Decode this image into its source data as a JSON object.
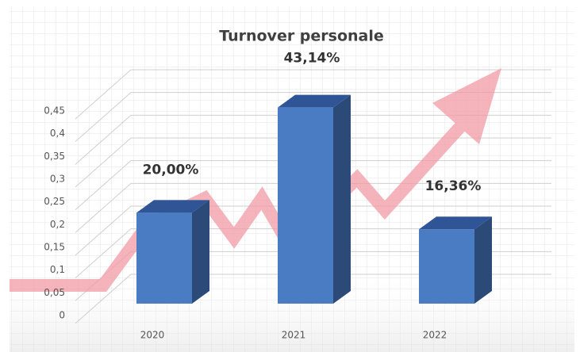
{
  "chart_data": {
    "type": "bar3d",
    "title": "Turnover personale",
    "categories": [
      "2020",
      "2021",
      "2022"
    ],
    "values": [
      0.2,
      0.4314,
      0.1636
    ],
    "value_labels": [
      "20,00%",
      "43,14%",
      "16,36%"
    ],
    "color": "#4a7cc4",
    "ylim": [
      0,
      0.45
    ],
    "yticks": [
      0,
      {
        "value": 0.05,
        "label": "0,05"
      },
      {
        "value": 0.1,
        "label": "0,1"
      },
      {
        "value": 0.15,
        "label": "0,15"
      },
      {
        "value": 0.2,
        "label": "0,2"
      },
      {
        "value": 0.25,
        "label": "0,25"
      },
      {
        "value": 0.3,
        "label": "0,3"
      },
      {
        "value": 0.35,
        "label": "0,35"
      },
      {
        "value": 0.4,
        "label": "0,4"
      },
      {
        "value": 0.45,
        "label": "0,45"
      }
    ],
    "grid": true
  }
}
